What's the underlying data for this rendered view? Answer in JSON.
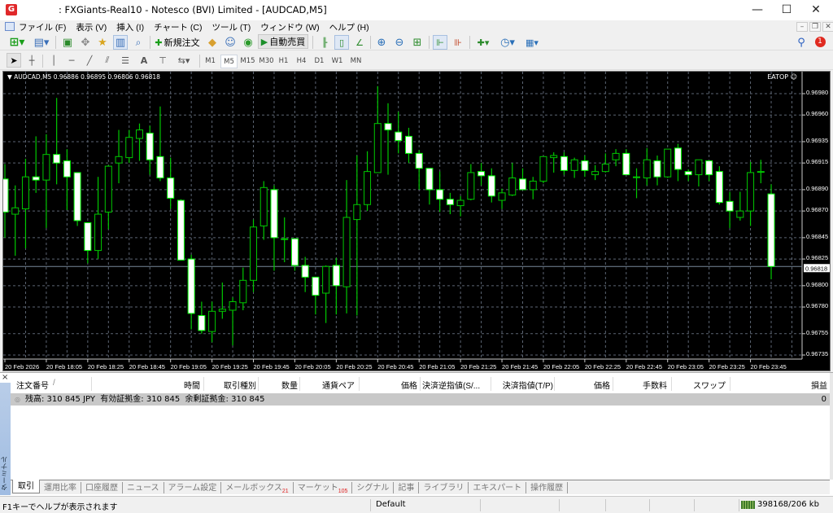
{
  "window": {
    "logo": "G",
    "title": ": FXGiants-Real10 - Notesco (BVI) Limited - [AUDCAD,M5]",
    "minimize": "—",
    "maximize": "☐",
    "close": "✕"
  },
  "menu": [
    "ファイル (F)",
    "表示 (V)",
    "挿入 (I)",
    "チャート (C)",
    "ツール (T)",
    "ウィンドウ (W)",
    "ヘルプ (H)"
  ],
  "toolbar": {
    "new_order": "新規注文",
    "auto_trading": "自動売買",
    "notification_count": "1",
    "text_tool": "A"
  },
  "timeframes": [
    "M1",
    "M5",
    "M15",
    "M30",
    "H1",
    "H4",
    "D1",
    "W1",
    "MN"
  ],
  "active_timeframe": "M5",
  "chart": {
    "header": "▼ AUDCAD,M5  0.96886 0.96895 0.96806 0.96818",
    "ea_label": "EATOP ☺",
    "current_price_label": "0.96818",
    "colors": {
      "background": "#000000",
      "bull_outline": "#00c800",
      "bear_fill": "#ffffff",
      "wick": "#00c800",
      "grid": "#5c6573",
      "bid_line": "#778899"
    }
  },
  "chart_data": {
    "type": "candlestick",
    "symbol": "AUDCAD",
    "timeframe": "M5",
    "open_high_low_close_order": [
      "open",
      "high",
      "low",
      "close"
    ],
    "x": [
      "17:45",
      "17:50",
      "17:55",
      "18:00",
      "18:05",
      "18:10",
      "18:15",
      "18:20",
      "18:25",
      "18:30",
      "18:35",
      "18:40",
      "18:45",
      "18:50",
      "18:55",
      "19:00",
      "19:05",
      "19:10",
      "19:15",
      "19:20",
      "19:25",
      "19:30",
      "19:35",
      "19:40",
      "19:45",
      "19:50",
      "19:55",
      "20:00",
      "20:05",
      "20:10",
      "20:15",
      "20:20",
      "20:25",
      "20:30",
      "20:35",
      "20:40",
      "20:45",
      "20:50",
      "20:55",
      "21:00",
      "21:05",
      "21:10",
      "21:15",
      "21:20",
      "21:25",
      "21:30",
      "21:35",
      "21:40",
      "21:45",
      "21:50",
      "21:55",
      "22:00",
      "22:05",
      "22:10",
      "22:15",
      "22:20",
      "22:25",
      "22:30",
      "22:35",
      "22:40",
      "22:45",
      "22:50",
      "22:55",
      "23:00",
      "23:05",
      "23:10",
      "23:15",
      "23:20",
      "23:25",
      "23:30",
      "23:35",
      "23:40",
      "23:45",
      "23:50",
      "23:55"
    ],
    "ohlc": [
      [
        0.969,
        0.96914,
        0.96845,
        0.96869
      ],
      [
        0.96867,
        0.96894,
        0.96828,
        0.96873
      ],
      [
        0.96872,
        0.96919,
        0.96835,
        0.96902
      ],
      [
        0.96902,
        0.9694,
        0.96887,
        0.96899
      ],
      [
        0.96899,
        0.96942,
        0.96854,
        0.96923
      ],
      [
        0.96923,
        0.96976,
        0.96895,
        0.96915
      ],
      [
        0.96917,
        0.96928,
        0.96871,
        0.96902
      ],
      [
        0.96906,
        0.96906,
        0.96856,
        0.96861
      ],
      [
        0.96859,
        0.96859,
        0.96821,
        0.96833
      ],
      [
        0.96833,
        0.96902,
        0.96825,
        0.96867
      ],
      [
        0.96869,
        0.96913,
        0.96853,
        0.96912
      ],
      [
        0.96915,
        0.96946,
        0.96896,
        0.96921
      ],
      [
        0.9692,
        0.96946,
        0.96915,
        0.96939
      ],
      [
        0.96938,
        0.96952,
        0.96917,
        0.96946
      ],
      [
        0.96943,
        0.9695,
        0.96904,
        0.96918
      ],
      [
        0.96921,
        0.96968,
        0.96898,
        0.96901
      ],
      [
        0.96901,
        0.9692,
        0.96872,
        0.96882
      ],
      [
        0.9688,
        0.96881,
        0.96824,
        0.96824
      ],
      [
        0.96825,
        0.96829,
        0.96759,
        0.96774
      ],
      [
        0.96772,
        0.96785,
        0.96755,
        0.96758
      ],
      [
        0.96757,
        0.96785,
        0.96747,
        0.96776
      ],
      [
        0.96776,
        0.96803,
        0.96769,
        0.96778
      ],
      [
        0.96777,
        0.96789,
        0.96744,
        0.96785
      ],
      [
        0.96784,
        0.96817,
        0.96777,
        0.96805
      ],
      [
        0.96805,
        0.96862,
        0.96794,
        0.96855
      ],
      [
        0.96856,
        0.96898,
        0.96843,
        0.96892
      ],
      [
        0.9689,
        0.96894,
        0.96814,
        0.96845
      ],
      [
        0.96844,
        0.96864,
        0.96822,
        0.96844
      ],
      [
        0.96844,
        0.96844,
        0.96814,
        0.96819
      ],
      [
        0.96819,
        0.96827,
        0.96794,
        0.96808
      ],
      [
        0.96808,
        0.96808,
        0.96773,
        0.96791
      ],
      [
        0.96793,
        0.96819,
        0.96765,
        0.96818
      ],
      [
        0.96819,
        0.96826,
        0.96773,
        0.968
      ],
      [
        0.96799,
        0.96899,
        0.96774,
        0.96864
      ],
      [
        0.96862,
        0.96922,
        0.96772,
        0.96876
      ],
      [
        0.96876,
        0.96926,
        0.9687,
        0.96907
      ],
      [
        0.96906,
        0.96987,
        0.96906,
        0.96952
      ],
      [
        0.96952,
        0.96971,
        0.96904,
        0.96946
      ],
      [
        0.96944,
        0.96963,
        0.96924,
        0.96936
      ],
      [
        0.9694,
        0.96948,
        0.96915,
        0.96924
      ],
      [
        0.96924,
        0.96927,
        0.9689,
        0.9691
      ],
      [
        0.9691,
        0.9691,
        0.96876,
        0.9689
      ],
      [
        0.9689,
        0.96907,
        0.96869,
        0.96881
      ],
      [
        0.96881,
        0.96887,
        0.96867,
        0.96876
      ],
      [
        0.96875,
        0.96884,
        0.96865,
        0.9688
      ],
      [
        0.96881,
        0.96914,
        0.9688,
        0.96906
      ],
      [
        0.96907,
        0.96915,
        0.96894,
        0.96903
      ],
      [
        0.96903,
        0.9691,
        0.96878,
        0.96884
      ],
      [
        0.9688,
        0.96891,
        0.96872,
        0.96887
      ],
      [
        0.96885,
        0.96915,
        0.96884,
        0.96901
      ],
      [
        0.969,
        0.9691,
        0.9689,
        0.9689
      ],
      [
        0.9689,
        0.96902,
        0.96881,
        0.96898
      ],
      [
        0.96898,
        0.96921,
        0.96896,
        0.96921
      ],
      [
        0.9692,
        0.96925,
        0.96906,
        0.96922
      ],
      [
        0.96921,
        0.96925,
        0.96904,
        0.96908
      ],
      [
        0.96908,
        0.9692,
        0.96901,
        0.96918
      ],
      [
        0.96917,
        0.96922,
        0.96902,
        0.96908
      ],
      [
        0.96904,
        0.96913,
        0.96899,
        0.96907
      ],
      [
        0.96907,
        0.96924,
        0.96906,
        0.96914
      ],
      [
        0.96918,
        0.96928,
        0.96912,
        0.96924
      ],
      [
        0.96924,
        0.96928,
        0.96904,
        0.96904
      ],
      [
        0.96902,
        0.9691,
        0.96882,
        0.96902
      ],
      [
        0.96901,
        0.96929,
        0.96894,
        0.96918
      ],
      [
        0.96917,
        0.96922,
        0.96894,
        0.96902
      ],
      [
        0.96902,
        0.96928,
        0.96901,
        0.96928
      ],
      [
        0.96929,
        0.96933,
        0.96898,
        0.96909
      ],
      [
        0.96907,
        0.96909,
        0.96898,
        0.96904
      ],
      [
        0.96904,
        0.96918,
        0.96893,
        0.96918
      ],
      [
        0.96917,
        0.96917,
        0.96898,
        0.96904
      ],
      [
        0.96907,
        0.96912,
        0.96876,
        0.96878
      ],
      [
        0.96879,
        0.96888,
        0.96854,
        0.9687
      ],
      [
        0.96864,
        0.96888,
        0.96861,
        0.9687
      ],
      [
        0.9687,
        0.96916,
        0.96856,
        0.96906
      ],
      [
        0.96907,
        0.96918,
        0.96896,
        0.96907
      ],
      [
        0.96886,
        0.96895,
        0.96806,
        0.96818
      ]
    ],
    "y_ticks": [
      "0.96980",
      "0.96960",
      "0.96935",
      "0.96915",
      "0.96890",
      "0.96870",
      "0.96845",
      "0.96825",
      "0.96800",
      "0.96780",
      "0.96755",
      "0.96735"
    ],
    "x_tick_labels": [
      "20 Feb 2026",
      "20 Feb 18:05",
      "20 Feb 18:25",
      "20 Feb 18:45",
      "20 Feb 19:05",
      "20 Feb 19:25",
      "20 Feb 19:45",
      "20 Feb 20:05",
      "20 Feb 20:25",
      "20 Feb 20:45",
      "20 Feb 21:05",
      "20 Feb 21:25",
      "20 Feb 21:45",
      "20 Feb 22:05",
      "20 Feb 22:25",
      "20 Feb 22:45",
      "20 Feb 23:05",
      "20 Feb 23:25",
      "20 Feb 23:45"
    ],
    "ylim": [
      0.96735,
      0.9698
    ],
    "current_price": 0.96818,
    "grid": true
  },
  "terminal": {
    "close": "×",
    "side_label": "ターミナル",
    "columns": [
      "注文番号",
      "/",
      "時間",
      "取引種別",
      "数量",
      "通貨ペア",
      "価格",
      "決済逆指値(S/...",
      "決済指値(T/P)",
      "価格",
      "手数料",
      "スワップ",
      "損益"
    ],
    "balance_text": "残高: 310 845 JPY  有効証拠金: 310 845  余剰証拠金: 310 845",
    "profit": "0",
    "tabs": [
      {
        "label": "取引"
      },
      {
        "label": "運用比率"
      },
      {
        "label": "口座履歴"
      },
      {
        "label": "ニュース"
      },
      {
        "label": "アラーム設定"
      },
      {
        "label": "メールボックス",
        "badge": "21"
      },
      {
        "label": "マーケット",
        "badge": "105"
      },
      {
        "label": "シグナル"
      },
      {
        "label": "記事"
      },
      {
        "label": "ライブラリ"
      },
      {
        "label": "エキスパート"
      },
      {
        "label": "操作履歴"
      }
    ],
    "active_tab": "取引"
  },
  "status": {
    "help": "F1キーでヘルプが表示されます",
    "profile": "Default",
    "traffic": "398168/206 kb"
  }
}
